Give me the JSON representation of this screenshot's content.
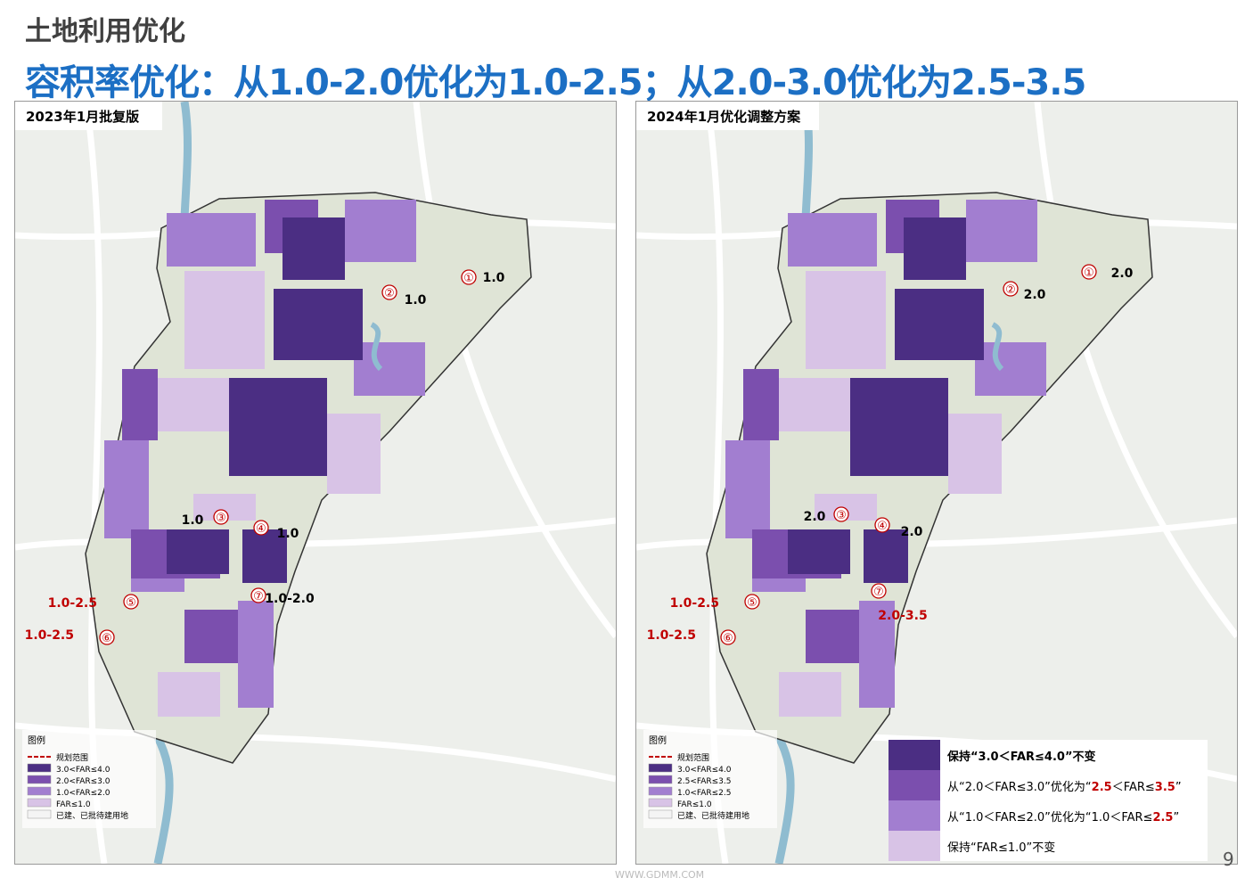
{
  "header": {
    "section": "土地利用优化",
    "title": "容积率优化：从1.0-2.0优化为1.0-2.5；从2.0-3.0优化为2.5-3.5"
  },
  "maps": [
    {
      "title": "2023年1月批复版",
      "markers": [
        {
          "number": "①",
          "label": "1.0",
          "color": "#000000"
        },
        {
          "number": "②",
          "label": "1.0",
          "color": "#000000"
        },
        {
          "number": "③",
          "label": "1.0",
          "color": "#000000"
        },
        {
          "number": "④",
          "label": "1.0",
          "color": "#000000"
        },
        {
          "number": "⑤",
          "label": "1.0-2.5",
          "color": "#c00000"
        },
        {
          "number": "⑥",
          "label": "1.0-2.5",
          "color": "#c00000"
        },
        {
          "number": "⑦",
          "label": "1.0-2.0",
          "color": "#000000"
        }
      ],
      "legend": {
        "title": "图例",
        "items": [
          "规划范围",
          "3.0<FAR≤4.0",
          "2.0<FAR≤3.0",
          "1.0<FAR≤2.0",
          "FAR≤1.0",
          "已建、已批待建用地"
        ]
      }
    },
    {
      "title": "2024年1月优化调整方案",
      "markers": [
        {
          "number": "①",
          "label": "2.0",
          "color": "#000000"
        },
        {
          "number": "②",
          "label": "2.0",
          "color": "#000000"
        },
        {
          "number": "③",
          "label": "2.0",
          "color": "#000000"
        },
        {
          "number": "④",
          "label": "2.0",
          "color": "#000000"
        },
        {
          "number": "⑤",
          "label": "1.0-2.5",
          "color": "#c00000"
        },
        {
          "number": "⑥",
          "label": "1.0-2.5",
          "color": "#c00000"
        },
        {
          "number": "⑦",
          "label": "2.0-3.5",
          "color": "#c00000"
        }
      ],
      "legend": {
        "title": "图例",
        "items": [
          "规划范围",
          "3.0<FAR≤4.0",
          "2.5<FAR≤3.5",
          "1.0<FAR≤2.5",
          "FAR≤1.0",
          "已建、已批待建用地"
        ]
      }
    }
  ],
  "summary": [
    {
      "color": "#4b2e83",
      "parts": [
        "保持“3.0＜FAR≤4.0”不变"
      ]
    },
    {
      "color": "#7b4fae",
      "parts": [
        "从“2.0＜FAR≤3.0”优化为“",
        "2.5",
        "＜FAR≤",
        "3.5",
        "”"
      ]
    },
    {
      "color": "#a27ed0",
      "parts": [
        "从“1.0＜FAR≤2.0”优化为“1.0＜FAR≤",
        "2.5",
        "”"
      ]
    },
    {
      "color": "#d8c3e6",
      "parts": [
        "保持“FAR≤1.0”不变"
      ]
    }
  ],
  "page_number": "9",
  "watermark": "WWW.GDMM.COM"
}
